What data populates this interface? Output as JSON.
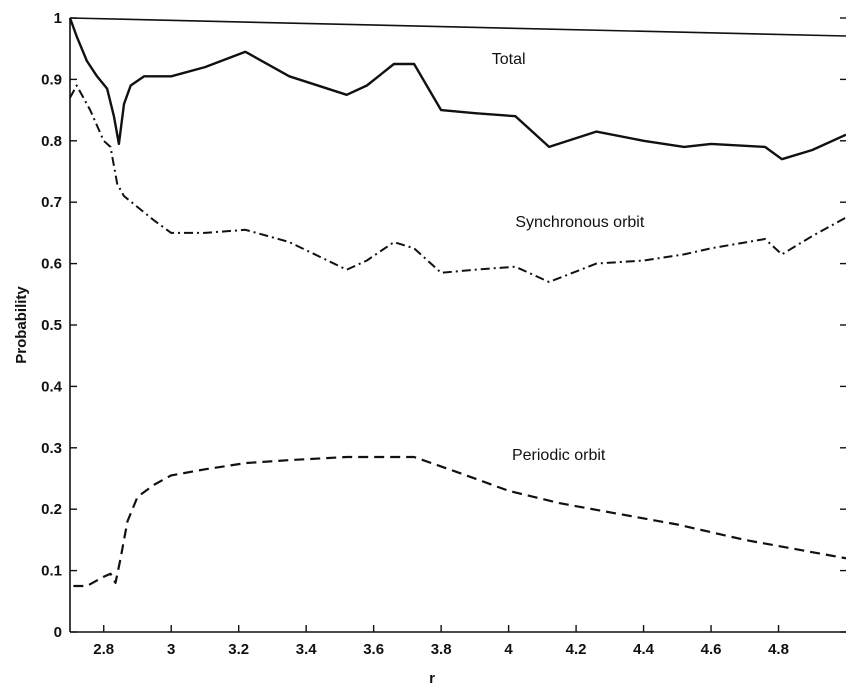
{
  "chart_data": {
    "type": "line",
    "xlabel": "r",
    "ylabel": "Probability",
    "xlim": [
      2.7,
      5.0
    ],
    "ylim": [
      0,
      1
    ],
    "xticks": [
      "2.8",
      "3",
      "3.2",
      "3.4",
      "3.6",
      "3.8",
      "4",
      "4.2",
      "4.4",
      "4.6",
      "4.8"
    ],
    "yticks": [
      "0",
      "0.1",
      "0.2",
      "0.3",
      "0.4",
      "0.5",
      "0.6",
      "0.7",
      "0.8",
      "0.9",
      "1"
    ],
    "grid": false,
    "series": [
      {
        "name": "Total",
        "style": "solid",
        "x": [
          2.7,
          2.72,
          2.75,
          2.78,
          2.81,
          2.83,
          2.845,
          2.86,
          2.88,
          2.92,
          3.0,
          3.1,
          3.22,
          3.35,
          3.52,
          3.58,
          3.66,
          3.72,
          3.8,
          3.9,
          4.02,
          4.12,
          4.26,
          4.4,
          4.52,
          4.6,
          4.76,
          4.81,
          4.9,
          5.0
        ],
        "y": [
          1.0,
          0.97,
          0.93,
          0.905,
          0.885,
          0.84,
          0.795,
          0.86,
          0.89,
          0.905,
          0.905,
          0.92,
          0.945,
          0.905,
          0.875,
          0.89,
          0.925,
          0.925,
          0.85,
          0.845,
          0.84,
          0.79,
          0.815,
          0.8,
          0.79,
          0.795,
          0.79,
          0.77,
          0.785,
          0.81
        ]
      },
      {
        "name": "Synchronous orbit",
        "style": "dashdot",
        "x": [
          2.7,
          2.72,
          2.76,
          2.8,
          2.82,
          2.84,
          2.86,
          2.95,
          3.0,
          3.1,
          3.22,
          3.35,
          3.52,
          3.58,
          3.66,
          3.72,
          3.8,
          3.9,
          4.02,
          4.12,
          4.26,
          4.4,
          4.52,
          4.6,
          4.76,
          4.81,
          4.9,
          5.0
        ],
        "y": [
          0.87,
          0.89,
          0.85,
          0.8,
          0.79,
          0.73,
          0.71,
          0.67,
          0.65,
          0.65,
          0.655,
          0.635,
          0.59,
          0.605,
          0.635,
          0.625,
          0.585,
          0.59,
          0.595,
          0.57,
          0.6,
          0.605,
          0.615,
          0.625,
          0.64,
          0.615,
          0.645,
          0.675
        ]
      },
      {
        "name": "Periodic orbit",
        "style": "dashed",
        "x": [
          2.71,
          2.75,
          2.8,
          2.82,
          2.835,
          2.85,
          2.87,
          2.9,
          2.95,
          3.0,
          3.1,
          3.22,
          3.35,
          3.52,
          3.62,
          3.72,
          3.85,
          4.0,
          4.15,
          4.3,
          4.5,
          4.7,
          4.85,
          5.0
        ],
        "y": [
          0.075,
          0.075,
          0.09,
          0.095,
          0.08,
          0.12,
          0.18,
          0.22,
          0.24,
          0.255,
          0.265,
          0.275,
          0.28,
          0.285,
          0.285,
          0.285,
          0.26,
          0.23,
          0.21,
          0.195,
          0.175,
          0.15,
          0.135,
          0.12
        ]
      }
    ],
    "annotations": [
      {
        "text": "Total",
        "x": 3.95,
        "y": 0.925
      },
      {
        "text": "Synchronous orbit",
        "x": 4.02,
        "y": 0.66
      },
      {
        "text": "Periodic orbit",
        "x": 4.01,
        "y": 0.28
      }
    ]
  }
}
